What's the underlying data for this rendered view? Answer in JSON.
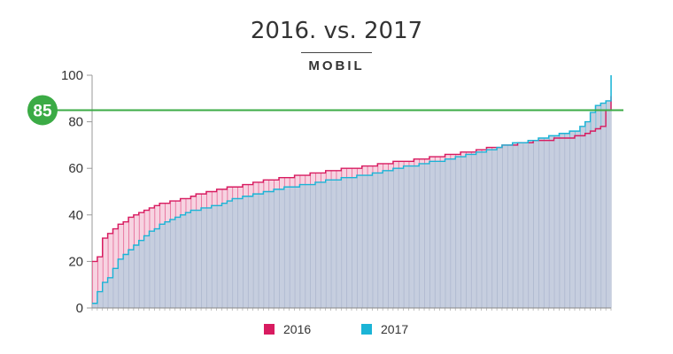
{
  "title": "2016. vs. 2017",
  "subtitle": "MOBIL",
  "threshold": {
    "value": 85,
    "label": "85",
    "color": "#3bab45"
  },
  "colors": {
    "s2016": "#d81b60",
    "s2016_fill": "#f7d3e1",
    "s2017": "#1bb4d6",
    "s2017_fill": "#c6cedf"
  },
  "legend": [
    {
      "label": "2016",
      "color": "#d81b60"
    },
    {
      "label": "2017",
      "color": "#1bb4d6"
    }
  ],
  "chart_data": {
    "type": "area",
    "title": "2016. vs. 2017",
    "subtitle": "MOBIL",
    "ylim": [
      0,
      100
    ],
    "y_ticks": [
      0,
      20,
      40,
      60,
      80,
      100
    ],
    "x": [
      0,
      1,
      2,
      3,
      4,
      5,
      6,
      7,
      8,
      9,
      10,
      11,
      12,
      13,
      14,
      15,
      16,
      17,
      18,
      19,
      20,
      21,
      22,
      23,
      24,
      25,
      26,
      27,
      28,
      29,
      30,
      31,
      32,
      33,
      34,
      35,
      36,
      37,
      38,
      39,
      40,
      41,
      42,
      43,
      44,
      45,
      46,
      47,
      48,
      49,
      50,
      51,
      52,
      53,
      54,
      55,
      56,
      57,
      58,
      59,
      60,
      61,
      62,
      63,
      64,
      65,
      66,
      67,
      68,
      69,
      70,
      71,
      72,
      73,
      74,
      75,
      76,
      77,
      78,
      79,
      80,
      81,
      82,
      83,
      84,
      85,
      86,
      87,
      88,
      89,
      90,
      91,
      92,
      93,
      94,
      95,
      96,
      97,
      98,
      99,
      100
    ],
    "series": [
      {
        "name": "2016",
        "values": [
          20,
          22,
          30,
          32,
          34,
          36,
          37,
          39,
          40,
          41,
          42,
          43,
          44,
          45,
          45,
          46,
          46,
          47,
          47,
          48,
          49,
          49,
          50,
          50,
          51,
          51,
          52,
          52,
          52,
          53,
          53,
          54,
          54,
          55,
          55,
          55,
          56,
          56,
          56,
          57,
          57,
          57,
          58,
          58,
          58,
          59,
          59,
          59,
          60,
          60,
          60,
          60,
          61,
          61,
          61,
          62,
          62,
          62,
          63,
          63,
          63,
          63,
          64,
          64,
          64,
          65,
          65,
          65,
          66,
          66,
          66,
          67,
          67,
          67,
          68,
          68,
          69,
          69,
          69,
          70,
          70,
          70,
          71,
          71,
          71,
          72,
          72,
          72,
          72,
          73,
          73,
          73,
          73,
          74,
          74,
          75,
          76,
          77,
          78,
          85,
          91
        ]
      },
      {
        "name": "2017",
        "values": [
          2,
          7,
          11,
          13,
          17,
          21,
          23,
          25,
          27,
          29,
          31,
          33,
          34,
          36,
          37,
          38,
          39,
          40,
          41,
          42,
          42,
          43,
          43,
          44,
          44,
          45,
          46,
          47,
          47,
          48,
          48,
          49,
          49,
          50,
          50,
          51,
          51,
          52,
          52,
          52,
          53,
          53,
          53,
          54,
          54,
          55,
          55,
          55,
          56,
          56,
          56,
          57,
          57,
          57,
          58,
          58,
          59,
          59,
          60,
          60,
          61,
          61,
          61,
          62,
          62,
          63,
          63,
          63,
          64,
          64,
          65,
          65,
          66,
          66,
          67,
          67,
          68,
          68,
          69,
          70,
          70,
          71,
          71,
          71,
          72,
          72,
          73,
          73,
          74,
          74,
          75,
          75,
          76,
          76,
          78,
          80,
          84,
          87,
          88,
          89,
          100
        ]
      }
    ]
  }
}
